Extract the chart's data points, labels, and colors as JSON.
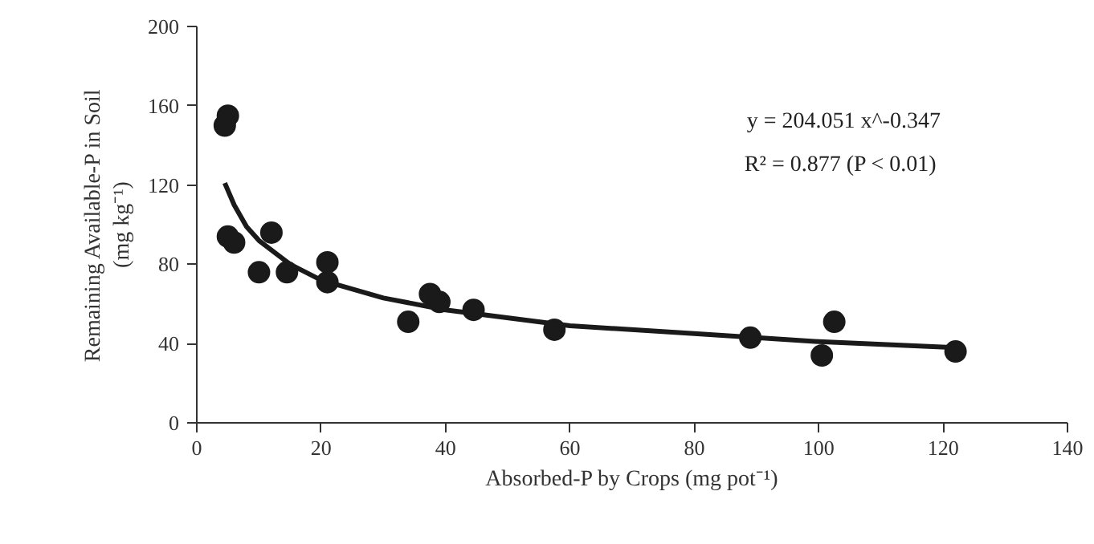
{
  "chart_data": {
    "type": "scatter",
    "xlabel": "Absorbed-P by Crops (mg pot⁻¹)",
    "ylabel": "Remaining Available-P in Soil\n(mg kg⁻¹)",
    "xlim": [
      0,
      140
    ],
    "ylim": [
      0,
      200
    ],
    "xticks": [
      0,
      20,
      40,
      60,
      80,
      100,
      120,
      140
    ],
    "yticks": [
      0,
      40,
      80,
      120,
      160,
      200
    ],
    "grid": false,
    "marker": "circle",
    "series": [
      {
        "color": "#1a1a1a",
        "x": [
          5,
          4.5,
          5,
          6,
          10,
          12,
          14.5,
          21,
          21,
          34,
          37.5,
          39,
          44.5,
          57.5,
          89,
          100.5,
          102.5,
          122
        ],
        "values": [
          155,
          150,
          94,
          91,
          76,
          96,
          76,
          81,
          71,
          51,
          65,
          61,
          57,
          47,
          43,
          34,
          51,
          36
        ]
      },
      {
        "type": "line",
        "color": "#1a1a1a",
        "marker": "none",
        "line_style": "solid",
        "x": [
          4.5,
          6,
          8,
          10,
          15,
          20,
          30,
          40,
          60,
          80,
          100,
          122
        ],
        "values": [
          121,
          110,
          99,
          92,
          80,
          72,
          63,
          57,
          49,
          45,
          41,
          38
        ]
      }
    ],
    "annotations": [
      "y = 204.051 x^-0.347",
      "R² = 0.877  (P < 0.01)"
    ]
  }
}
